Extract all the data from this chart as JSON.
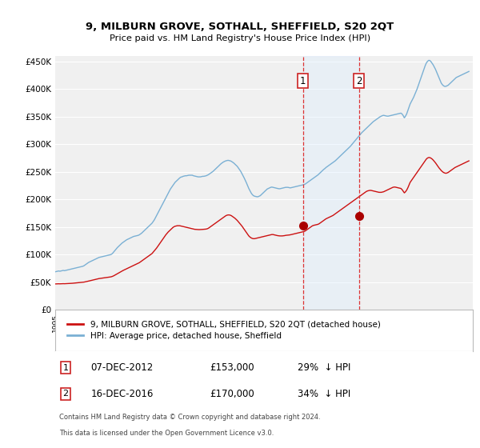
{
  "title": "9, MILBURN GROVE, SOTHALL, SHEFFIELD, S20 2QT",
  "subtitle": "Price paid vs. HM Land Registry's House Price Index (HPI)",
  "ylim": [
    0,
    460000
  ],
  "yticks": [
    0,
    50000,
    100000,
    150000,
    200000,
    250000,
    300000,
    350000,
    400000,
    450000
  ],
  "ytick_labels": [
    "£0",
    "£50K",
    "£100K",
    "£150K",
    "£200K",
    "£250K",
    "£300K",
    "£350K",
    "£400K",
    "£450K"
  ],
  "xlim_start": 1995.0,
  "xlim_end": 2025.2,
  "background_color": "#ffffff",
  "plot_bg_color": "#f0f0f0",
  "grid_color": "#ffffff",
  "hpi_color": "#7ab0d4",
  "property_color": "#cc1111",
  "transaction_dot_color": "#aa0000",
  "transaction_line_color": "#dd3333",
  "shade_color": "#ddeeff",
  "legend_property": "9, MILBURN GROVE, SOTHALL, SHEFFIELD, S20 2QT (detached house)",
  "legend_hpi": "HPI: Average price, detached house, Sheffield",
  "transactions": [
    {
      "id": 1,
      "date_str": "07-DEC-2012",
      "year": 2012.92,
      "price": 153000,
      "pct": "29%",
      "direction": "↓"
    },
    {
      "id": 2,
      "date_str": "16-DEC-2016",
      "year": 2016.96,
      "price": 170000,
      "pct": "34%",
      "direction": "↓"
    }
  ],
  "footer_line1": "Contains HM Land Registry data © Crown copyright and database right 2024.",
  "footer_line2": "This data is licensed under the Open Government Licence v3.0.",
  "hpi_data_x": [
    1995.0,
    1995.083,
    1995.167,
    1995.25,
    1995.333,
    1995.417,
    1995.5,
    1995.583,
    1995.667,
    1995.75,
    1995.833,
    1995.917,
    1996.0,
    1996.083,
    1996.167,
    1996.25,
    1996.333,
    1996.417,
    1996.5,
    1996.583,
    1996.667,
    1996.75,
    1996.833,
    1996.917,
    1997.0,
    1997.083,
    1997.167,
    1997.25,
    1997.333,
    1997.417,
    1997.5,
    1997.583,
    1997.667,
    1997.75,
    1997.833,
    1997.917,
    1998.0,
    1998.083,
    1998.167,
    1998.25,
    1998.333,
    1998.417,
    1998.5,
    1998.583,
    1998.667,
    1998.75,
    1998.833,
    1998.917,
    1999.0,
    1999.083,
    1999.167,
    1999.25,
    1999.333,
    1999.417,
    1999.5,
    1999.583,
    1999.667,
    1999.75,
    1999.833,
    1999.917,
    2000.0,
    2000.083,
    2000.167,
    2000.25,
    2000.333,
    2000.417,
    2000.5,
    2000.583,
    2000.667,
    2000.75,
    2000.833,
    2000.917,
    2001.0,
    2001.083,
    2001.167,
    2001.25,
    2001.333,
    2001.417,
    2001.5,
    2001.583,
    2001.667,
    2001.75,
    2001.833,
    2001.917,
    2002.0,
    2002.083,
    2002.167,
    2002.25,
    2002.333,
    2002.417,
    2002.5,
    2002.583,
    2002.667,
    2002.75,
    2002.833,
    2002.917,
    2003.0,
    2003.083,
    2003.167,
    2003.25,
    2003.333,
    2003.417,
    2003.5,
    2003.583,
    2003.667,
    2003.75,
    2003.833,
    2003.917,
    2004.0,
    2004.083,
    2004.167,
    2004.25,
    2004.333,
    2004.417,
    2004.5,
    2004.583,
    2004.667,
    2004.75,
    2004.833,
    2004.917,
    2005.0,
    2005.083,
    2005.167,
    2005.25,
    2005.333,
    2005.417,
    2005.5,
    2005.583,
    2005.667,
    2005.75,
    2005.833,
    2005.917,
    2006.0,
    2006.083,
    2006.167,
    2006.25,
    2006.333,
    2006.417,
    2006.5,
    2006.583,
    2006.667,
    2006.75,
    2006.833,
    2006.917,
    2007.0,
    2007.083,
    2007.167,
    2007.25,
    2007.333,
    2007.417,
    2007.5,
    2007.583,
    2007.667,
    2007.75,
    2007.833,
    2007.917,
    2008.0,
    2008.083,
    2008.167,
    2008.25,
    2008.333,
    2008.417,
    2008.5,
    2008.583,
    2008.667,
    2008.75,
    2008.833,
    2008.917,
    2009.0,
    2009.083,
    2009.167,
    2009.25,
    2009.333,
    2009.417,
    2009.5,
    2009.583,
    2009.667,
    2009.75,
    2009.833,
    2009.917,
    2010.0,
    2010.083,
    2010.167,
    2010.25,
    2010.333,
    2010.417,
    2010.5,
    2010.583,
    2010.667,
    2010.75,
    2010.833,
    2010.917,
    2011.0,
    2011.083,
    2011.167,
    2011.25,
    2011.333,
    2011.417,
    2011.5,
    2011.583,
    2011.667,
    2011.75,
    2011.833,
    2011.917,
    2012.0,
    2012.083,
    2012.167,
    2012.25,
    2012.333,
    2012.417,
    2012.5,
    2012.583,
    2012.667,
    2012.75,
    2012.833,
    2012.917,
    2013.0,
    2013.083,
    2013.167,
    2013.25,
    2013.333,
    2013.417,
    2013.5,
    2013.583,
    2013.667,
    2013.75,
    2013.833,
    2013.917,
    2014.0,
    2014.083,
    2014.167,
    2014.25,
    2014.333,
    2014.417,
    2014.5,
    2014.583,
    2014.667,
    2014.75,
    2014.833,
    2014.917,
    2015.0,
    2015.083,
    2015.167,
    2015.25,
    2015.333,
    2015.417,
    2015.5,
    2015.583,
    2015.667,
    2015.75,
    2015.833,
    2015.917,
    2016.0,
    2016.083,
    2016.167,
    2016.25,
    2016.333,
    2016.417,
    2016.5,
    2016.583,
    2016.667,
    2016.75,
    2016.833,
    2016.917,
    2017.0,
    2017.083,
    2017.167,
    2017.25,
    2017.333,
    2017.417,
    2017.5,
    2017.583,
    2017.667,
    2017.75,
    2017.833,
    2017.917,
    2018.0,
    2018.083,
    2018.167,
    2018.25,
    2018.333,
    2018.417,
    2018.5,
    2018.583,
    2018.667,
    2018.75,
    2018.833,
    2018.917,
    2019.0,
    2019.083,
    2019.167,
    2019.25,
    2019.333,
    2019.417,
    2019.5,
    2019.583,
    2019.667,
    2019.75,
    2019.833,
    2019.917,
    2020.0,
    2020.083,
    2020.167,
    2020.25,
    2020.333,
    2020.417,
    2020.5,
    2020.583,
    2020.667,
    2020.75,
    2020.833,
    2020.917,
    2021.0,
    2021.083,
    2021.167,
    2021.25,
    2021.333,
    2021.417,
    2021.5,
    2021.583,
    2021.667,
    2021.75,
    2021.833,
    2021.917,
    2022.0,
    2022.083,
    2022.167,
    2022.25,
    2022.333,
    2022.417,
    2022.5,
    2022.583,
    2022.667,
    2022.75,
    2022.833,
    2022.917,
    2023.0,
    2023.083,
    2023.167,
    2023.25,
    2023.333,
    2023.417,
    2023.5,
    2023.583,
    2023.667,
    2023.75,
    2023.833,
    2023.917,
    2024.0,
    2024.083,
    2024.167,
    2024.25,
    2024.333,
    2024.417,
    2024.5,
    2024.583,
    2024.667,
    2024.75,
    2024.833,
    2024.917
  ],
  "hpi_data_y": [
    69000,
    69500,
    70000,
    70500,
    70000,
    70500,
    71000,
    71500,
    71000,
    71500,
    72000,
    72500,
    73000,
    73500,
    74000,
    74500,
    75000,
    75500,
    76000,
    76500,
    77000,
    77500,
    78000,
    78500,
    79000,
    80000,
    81500,
    83000,
    84500,
    86000,
    87000,
    88000,
    89000,
    90000,
    91000,
    92000,
    93000,
    94000,
    95000,
    95500,
    96000,
    96500,
    97000,
    97500,
    98000,
    98500,
    99000,
    99500,
    100000,
    101000,
    103000,
    105500,
    108000,
    110500,
    113000,
    115000,
    117000,
    119000,
    121000,
    122500,
    124000,
    125500,
    127000,
    128000,
    129000,
    130000,
    131000,
    132000,
    133000,
    133500,
    134000,
    134500,
    135000,
    136000,
    137500,
    139000,
    141000,
    143000,
    145000,
    147000,
    149000,
    151000,
    153000,
    155000,
    157000,
    160000,
    163000,
    167000,
    171000,
    175000,
    179000,
    183000,
    187000,
    191000,
    195000,
    199000,
    203000,
    207000,
    211000,
    215000,
    219000,
    222000,
    225000,
    228000,
    231000,
    233000,
    235000,
    237000,
    239000,
    240500,
    241000,
    242000,
    242500,
    243000,
    243000,
    243500,
    244000,
    244000,
    244000,
    244000,
    243000,
    242500,
    242000,
    241500,
    241000,
    241000,
    241000,
    241500,
    242000,
    242000,
    242500,
    243000,
    244000,
    245000,
    246500,
    248000,
    249500,
    251000,
    253000,
    255000,
    257000,
    259000,
    261000,
    263000,
    265000,
    266500,
    268000,
    269000,
    270000,
    270500,
    271000,
    270500,
    270000,
    269000,
    267500,
    266000,
    264000,
    262000,
    260000,
    257000,
    254000,
    251000,
    247000,
    243000,
    239000,
    234500,
    230000,
    225000,
    220000,
    216000,
    212000,
    209000,
    207000,
    206000,
    205500,
    205000,
    205000,
    206000,
    207000,
    209000,
    211000,
    213000,
    215000,
    217000,
    219000,
    220000,
    221000,
    222000,
    222500,
    222000,
    221500,
    221000,
    220500,
    220000,
    219500,
    219500,
    220000,
    220500,
    221000,
    221500,
    222000,
    222000,
    222000,
    221500,
    221000,
    221500,
    222000,
    222500,
    223000,
    223500,
    224000,
    224500,
    225000,
    225500,
    226000,
    226500,
    227000,
    228000,
    229500,
    231000,
    232500,
    234000,
    235500,
    237000,
    238500,
    240000,
    241500,
    243000,
    244500,
    246500,
    248500,
    250500,
    252500,
    254500,
    256000,
    258000,
    259500,
    261000,
    262500,
    264000,
    265500,
    267000,
    268500,
    270000,
    272000,
    274000,
    276000,
    278000,
    280000,
    282000,
    284000,
    286000,
    288000,
    290000,
    292000,
    294000,
    296000,
    298500,
    301000,
    303500,
    306000,
    308500,
    311000,
    313500,
    316000,
    318500,
    321000,
    323000,
    325000,
    327000,
    329000,
    331000,
    333000,
    335000,
    337000,
    339000,
    341000,
    342500,
    344000,
    345500,
    347000,
    348500,
    350000,
    351000,
    352000,
    352500,
    352000,
    351500,
    351000,
    351000,
    351500,
    352000,
    352500,
    353000,
    353500,
    354000,
    354500,
    355000,
    355500,
    356000,
    356500,
    355000,
    352000,
    348000,
    351000,
    355000,
    361000,
    367000,
    373000,
    377000,
    381000,
    385000,
    390000,
    395000,
    400000,
    406000,
    412000,
    418000,
    424000,
    430000,
    436000,
    442000,
    447000,
    450000,
    452000,
    452000,
    450000,
    447000,
    444000,
    440000,
    436000,
    431000,
    426000,
    421000,
    416000,
    411000,
    408000,
    406000,
    405000,
    405000,
    406000,
    407000,
    409000,
    411000,
    413000,
    415000,
    417000,
    419000,
    421000,
    422000,
    423000,
    424000,
    425000,
    426000,
    427000,
    428000,
    429000,
    430000,
    431000,
    432000
  ],
  "prop_data_x": [
    1995.0,
    1995.083,
    1995.167,
    1995.25,
    1995.333,
    1995.417,
    1995.5,
    1995.583,
    1995.667,
    1995.75,
    1995.833,
    1995.917,
    1996.0,
    1996.083,
    1996.167,
    1996.25,
    1996.333,
    1996.417,
    1996.5,
    1996.583,
    1996.667,
    1996.75,
    1996.833,
    1996.917,
    1997.0,
    1997.083,
    1997.167,
    1997.25,
    1997.333,
    1997.417,
    1997.5,
    1997.583,
    1997.667,
    1997.75,
    1997.833,
    1997.917,
    1998.0,
    1998.083,
    1998.167,
    1998.25,
    1998.333,
    1998.417,
    1998.5,
    1998.583,
    1998.667,
    1998.75,
    1998.833,
    1998.917,
    1999.0,
    1999.083,
    1999.167,
    1999.25,
    1999.333,
    1999.417,
    1999.5,
    1999.583,
    1999.667,
    1999.75,
    1999.833,
    1999.917,
    2000.0,
    2000.083,
    2000.167,
    2000.25,
    2000.333,
    2000.417,
    2000.5,
    2000.583,
    2000.667,
    2000.75,
    2000.833,
    2000.917,
    2001.0,
    2001.083,
    2001.167,
    2001.25,
    2001.333,
    2001.417,
    2001.5,
    2001.583,
    2001.667,
    2001.75,
    2001.833,
    2001.917,
    2002.0,
    2002.083,
    2002.167,
    2002.25,
    2002.333,
    2002.417,
    2002.5,
    2002.583,
    2002.667,
    2002.75,
    2002.833,
    2002.917,
    2003.0,
    2003.083,
    2003.167,
    2003.25,
    2003.333,
    2003.417,
    2003.5,
    2003.583,
    2003.667,
    2003.75,
    2003.833,
    2003.917,
    2004.0,
    2004.083,
    2004.167,
    2004.25,
    2004.333,
    2004.417,
    2004.5,
    2004.583,
    2004.667,
    2004.75,
    2004.833,
    2004.917,
    2005.0,
    2005.083,
    2005.167,
    2005.25,
    2005.333,
    2005.417,
    2005.5,
    2005.583,
    2005.667,
    2005.75,
    2005.833,
    2005.917,
    2006.0,
    2006.083,
    2006.167,
    2006.25,
    2006.333,
    2006.417,
    2006.5,
    2006.583,
    2006.667,
    2006.75,
    2006.833,
    2006.917,
    2007.0,
    2007.083,
    2007.167,
    2007.25,
    2007.333,
    2007.417,
    2007.5,
    2007.583,
    2007.667,
    2007.75,
    2007.833,
    2007.917,
    2008.0,
    2008.083,
    2008.167,
    2008.25,
    2008.333,
    2008.417,
    2008.5,
    2008.583,
    2008.667,
    2008.75,
    2008.833,
    2008.917,
    2009.0,
    2009.083,
    2009.167,
    2009.25,
    2009.333,
    2009.417,
    2009.5,
    2009.583,
    2009.667,
    2009.75,
    2009.833,
    2009.917,
    2010.0,
    2010.083,
    2010.167,
    2010.25,
    2010.333,
    2010.417,
    2010.5,
    2010.583,
    2010.667,
    2010.75,
    2010.833,
    2010.917,
    2011.0,
    2011.083,
    2011.167,
    2011.25,
    2011.333,
    2011.417,
    2011.5,
    2011.583,
    2011.667,
    2011.75,
    2011.833,
    2011.917,
    2012.0,
    2012.083,
    2012.167,
    2012.25,
    2012.333,
    2012.417,
    2012.5,
    2012.583,
    2012.667,
    2012.75,
    2012.833,
    2012.917,
    2013.0,
    2013.083,
    2013.167,
    2013.25,
    2013.333,
    2013.417,
    2013.5,
    2013.583,
    2013.667,
    2013.75,
    2013.833,
    2013.917,
    2014.0,
    2014.083,
    2014.167,
    2014.25,
    2014.333,
    2014.417,
    2014.5,
    2014.583,
    2014.667,
    2014.75,
    2014.833,
    2014.917,
    2015.0,
    2015.083,
    2015.167,
    2015.25,
    2015.333,
    2015.417,
    2015.5,
    2015.583,
    2015.667,
    2015.75,
    2015.833,
    2015.917,
    2016.0,
    2016.083,
    2016.167,
    2016.25,
    2016.333,
    2016.417,
    2016.5,
    2016.583,
    2016.667,
    2016.75,
    2016.833,
    2016.917,
    2017.0,
    2017.083,
    2017.167,
    2017.25,
    2017.333,
    2017.417,
    2017.5,
    2017.583,
    2017.667,
    2017.75,
    2017.833,
    2017.917,
    2018.0,
    2018.083,
    2018.167,
    2018.25,
    2018.333,
    2018.417,
    2018.5,
    2018.583,
    2018.667,
    2018.75,
    2018.833,
    2018.917,
    2019.0,
    2019.083,
    2019.167,
    2019.25,
    2019.333,
    2019.417,
    2019.5,
    2019.583,
    2019.667,
    2019.75,
    2019.833,
    2019.917,
    2020.0,
    2020.083,
    2020.167,
    2020.25,
    2020.333,
    2020.417,
    2020.5,
    2020.583,
    2020.667,
    2020.75,
    2020.833,
    2020.917,
    2021.0,
    2021.083,
    2021.167,
    2021.25,
    2021.333,
    2021.417,
    2021.5,
    2021.583,
    2021.667,
    2021.75,
    2021.833,
    2021.917,
    2022.0,
    2022.083,
    2022.167,
    2022.25,
    2022.333,
    2022.417,
    2022.5,
    2022.583,
    2022.667,
    2022.75,
    2022.833,
    2022.917,
    2023.0,
    2023.083,
    2023.167,
    2023.25,
    2023.333,
    2023.417,
    2023.5,
    2023.583,
    2023.667,
    2023.75,
    2023.833,
    2023.917,
    2024.0,
    2024.083,
    2024.167,
    2024.25,
    2024.333,
    2024.417,
    2024.5,
    2024.583,
    2024.667,
    2024.75,
    2024.833,
    2024.917
  ],
  "prop_data_y": [
    47000,
    47100,
    47200,
    47300,
    47200,
    47300,
    47400,
    47500,
    47400,
    47500,
    47600,
    47700,
    47800,
    47900,
    48000,
    48200,
    48400,
    48600,
    48800,
    49000,
    49200,
    49400,
    49600,
    49800,
    50000,
    50300,
    50700,
    51200,
    51700,
    52200,
    52700,
    53200,
    53700,
    54200,
    54700,
    55200,
    55700,
    56200,
    56700,
    57000,
    57300,
    57600,
    57900,
    58200,
    58500,
    58800,
    59100,
    59400,
    59700,
    60200,
    61000,
    62000,
    63200,
    64500,
    65800,
    67000,
    68200,
    69400,
    70500,
    71500,
    72500,
    73500,
    74500,
    75500,
    76500,
    77500,
    78500,
    79500,
    80500,
    81500,
    82500,
    83500,
    84500,
    85500,
    87000,
    88500,
    90000,
    91500,
    93000,
    94500,
    96000,
    97500,
    99000,
    100500,
    102000,
    104500,
    107000,
    109500,
    112000,
    115000,
    118000,
    121000,
    124000,
    127000,
    130000,
    133000,
    136000,
    138500,
    141000,
    143000,
    145000,
    147000,
    149000,
    150500,
    151500,
    152000,
    152500,
    152500,
    152500,
    152000,
    151500,
    151000,
    150500,
    150000,
    149500,
    149000,
    148500,
    148000,
    147500,
    147000,
    146500,
    146000,
    145800,
    145600,
    145500,
    145400,
    145500,
    145600,
    145800,
    146000,
    146200,
    146400,
    147000,
    148000,
    149500,
    151000,
    152500,
    154000,
    155500,
    157000,
    158500,
    160000,
    161500,
    163000,
    164500,
    166000,
    167500,
    169000,
    170500,
    171500,
    172000,
    172000,
    171500,
    170500,
    169000,
    167500,
    166000,
    164000,
    162000,
    159500,
    157000,
    154500,
    152000,
    149000,
    146000,
    143000,
    140000,
    137000,
    134000,
    132000,
    130500,
    129500,
    129000,
    129000,
    129500,
    130000,
    130500,
    131000,
    131500,
    132000,
    132500,
    133000,
    133500,
    134000,
    134500,
    135000,
    135500,
    136000,
    136500,
    136500,
    136000,
    135500,
    135000,
    134500,
    134200,
    134000,
    134000,
    134000,
    134200,
    134500,
    135000,
    135200,
    135500,
    135700,
    136000,
    136500,
    137000,
    137500,
    138000,
    138500,
    139000,
    139500,
    140000,
    140500,
    141000,
    141500,
    142000,
    143000,
    144500,
    146000,
    147500,
    149000,
    150500,
    152000,
    153000,
    153500,
    154000,
    154500,
    155000,
    156000,
    157500,
    159000,
    160500,
    162000,
    163500,
    165000,
    166000,
    167000,
    168000,
    169000,
    170000,
    171000,
    172500,
    174000,
    175500,
    177000,
    178500,
    180000,
    181500,
    183000,
    184500,
    186000,
    187500,
    189000,
    190500,
    192000,
    193500,
    195000,
    196500,
    198000,
    199500,
    201000,
    202500,
    204000,
    205500,
    207000,
    208500,
    210000,
    211500,
    213000,
    214500,
    215500,
    216000,
    216500,
    216500,
    216000,
    215500,
    215000,
    214500,
    214000,
    213500,
    213000,
    213000,
    213000,
    213500,
    214000,
    215000,
    216000,
    217000,
    218000,
    219000,
    220000,
    221000,
    222000,
    222500,
    222500,
    222000,
    221500,
    221000,
    220500,
    220000,
    218000,
    215000,
    212000,
    214000,
    217000,
    221000,
    226000,
    231000,
    234000,
    237000,
    240000,
    243000,
    246000,
    249000,
    252000,
    255000,
    258000,
    261000,
    264000,
    267000,
    270000,
    273000,
    275000,
    276000,
    276000,
    275000,
    273500,
    271500,
    269000,
    266500,
    263500,
    260500,
    257500,
    255000,
    252500,
    250500,
    249000,
    248000,
    247500,
    248000,
    249000,
    250500,
    252000,
    253500,
    255000,
    256500,
    258000,
    259000,
    260000,
    261000,
    262000,
    263000,
    264000,
    265000,
    266000,
    267000,
    268000,
    269000,
    270000
  ]
}
